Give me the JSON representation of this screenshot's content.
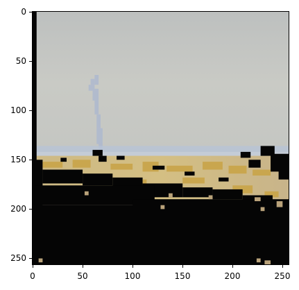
{
  "image": {
    "description_icon": "pixelated-landscape-photo",
    "extent": {
      "x": [
        0,
        256
      ],
      "y": [
        0,
        256
      ]
    },
    "colors": {
      "sky": "#c9cac5",
      "sky_top": "#bfc2c0",
      "horizon": "#b8c4d6",
      "field_light": "#d7c9a4",
      "field_gold": "#c9a64e",
      "dark": "#050505",
      "plume": "#aeb9cf"
    }
  },
  "axes": {
    "x_ticks": [
      "0",
      "50",
      "100",
      "150",
      "200",
      "250"
    ],
    "y_ticks": [
      "0",
      "50",
      "100",
      "150",
      "200",
      "250"
    ]
  }
}
